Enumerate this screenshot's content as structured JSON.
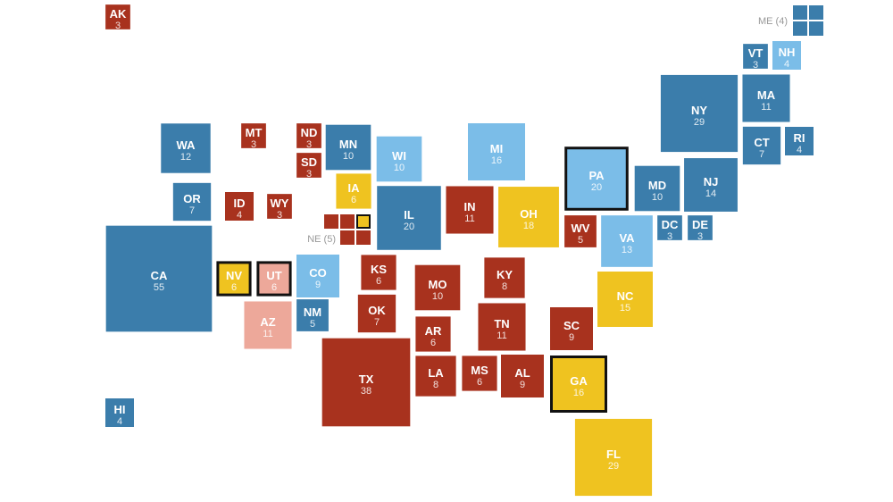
{
  "states": [
    {
      "label": "AK",
      "votes": 3,
      "color": "#a8321e"
    },
    {
      "label": "VT",
      "votes": 3,
      "color": "#3b7dab"
    },
    {
      "label": "NH",
      "votes": 4,
      "color": "#7bbde8"
    },
    {
      "label": "NY",
      "votes": 29,
      "color": "#3b7dab"
    },
    {
      "label": "MA",
      "votes": 11,
      "color": "#3b7dab"
    },
    {
      "label": "CT",
      "votes": 7,
      "color": "#3b7dab"
    },
    {
      "label": "RI",
      "votes": 4,
      "color": "#3b7dab"
    },
    {
      "label": "WA",
      "votes": 12,
      "color": "#3b7dab"
    },
    {
      "label": "OR",
      "votes": 7,
      "color": "#3b7dab"
    },
    {
      "label": "CA",
      "votes": 55,
      "color": "#3b7dab"
    },
    {
      "label": "HI",
      "votes": 4,
      "color": "#3b7dab"
    },
    {
      "label": "MT",
      "votes": 3,
      "color": "#a8321e"
    },
    {
      "label": "ND",
      "votes": 3,
      "color": "#a8321e"
    },
    {
      "label": "SD",
      "votes": 3,
      "color": "#a8321e"
    },
    {
      "label": "MN",
      "votes": 10,
      "color": "#3b7dab"
    },
    {
      "label": "WI",
      "votes": 10,
      "color": "#7bbde8"
    },
    {
      "label": "MI",
      "votes": 16,
      "color": "#7bbde8"
    },
    {
      "label": "ID",
      "votes": 4,
      "color": "#a8321e"
    },
    {
      "label": "WY",
      "votes": 3,
      "color": "#a8321e"
    },
    {
      "label": "IA",
      "votes": 6,
      "color": "#efc320"
    },
    {
      "label": "IL",
      "votes": 20,
      "color": "#3b7dab"
    },
    {
      "label": "IN",
      "votes": 11,
      "color": "#a8321e"
    },
    {
      "label": "OH",
      "votes": 18,
      "color": "#efc320"
    },
    {
      "label": "PA",
      "votes": 20,
      "color": "#7bbde8",
      "outlined": true
    },
    {
      "label": "MD",
      "votes": 10,
      "color": "#3b7dab"
    },
    {
      "label": "NJ",
      "votes": 14,
      "color": "#3b7dab"
    },
    {
      "label": "WV",
      "votes": 5,
      "color": "#a8321e"
    },
    {
      "label": "DC",
      "votes": 3,
      "color": "#3b7dab"
    },
    {
      "label": "DE",
      "votes": 3,
      "color": "#3b7dab"
    },
    {
      "label": "VA",
      "votes": 13,
      "color": "#7bbde8"
    },
    {
      "label": "NV",
      "votes": 6,
      "color": "#efc320",
      "outlined": true
    },
    {
      "label": "UT",
      "votes": 6,
      "color": "#eda89a",
      "outlined": true
    },
    {
      "label": "CO",
      "votes": 9,
      "color": "#7bbde8"
    },
    {
      "label": "KS",
      "votes": 6,
      "color": "#a8321e"
    },
    {
      "label": "MO",
      "votes": 10,
      "color": "#a8321e"
    },
    {
      "label": "KY",
      "votes": 8,
      "color": "#a8321e"
    },
    {
      "label": "NC",
      "votes": 15,
      "color": "#efc320"
    },
    {
      "label": "AZ",
      "votes": 11,
      "color": "#eda89a"
    },
    {
      "label": "NM",
      "votes": 5,
      "color": "#3b7dab"
    },
    {
      "label": "OK",
      "votes": 7,
      "color": "#a8321e"
    },
    {
      "label": "AR",
      "votes": 6,
      "color": "#a8321e"
    },
    {
      "label": "TN",
      "votes": 11,
      "color": "#a8321e"
    },
    {
      "label": "SC",
      "votes": 9,
      "color": "#a8321e"
    },
    {
      "label": "TX",
      "votes": 38,
      "color": "#a8321e"
    },
    {
      "label": "LA",
      "votes": 8,
      "color": "#a8321e"
    },
    {
      "label": "MS",
      "votes": 6,
      "color": "#a8321e"
    },
    {
      "label": "AL",
      "votes": 9,
      "color": "#a8321e"
    },
    {
      "label": "GA",
      "votes": 16,
      "color": "#efc320",
      "outlined": true
    },
    {
      "label": "FL",
      "votes": 29,
      "color": "#efc320"
    }
  ],
  "split": [
    {
      "label": "ME (4)",
      "districts": [
        {
          "color": "#3b7dab"
        },
        {
          "color": "#3b7dab"
        },
        {
          "color": "#3b7dab"
        },
        {
          "color": "#3b7dab"
        }
      ]
    },
    {
      "label": "NE (5)",
      "districts": [
        {
          "color": "#a8321e"
        },
        {
          "color": "#a8321e"
        },
        {
          "color": "#efc320",
          "outlined": true
        },
        {
          "color": "#a8321e"
        },
        {
          "color": "#a8321e"
        }
      ]
    }
  ]
}
